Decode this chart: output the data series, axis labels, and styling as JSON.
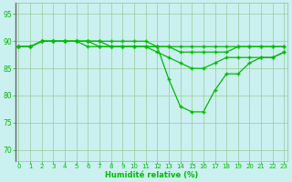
{
  "title": "",
  "xlabel": "Humidité relative (%)",
  "ylabel": "",
  "background_color": "#caf0f0",
  "line_color": "#00bb00",
  "grid_color": "#99cc99",
  "xlim": [
    0,
    23
  ],
  "ylim": [
    68,
    97
  ],
  "yticks": [
    70,
    75,
    80,
    85,
    90,
    95
  ],
  "xticks": [
    0,
    1,
    2,
    3,
    4,
    5,
    6,
    7,
    8,
    9,
    10,
    11,
    12,
    13,
    14,
    15,
    16,
    17,
    18,
    19,
    20,
    21,
    22,
    23
  ],
  "curves": [
    [
      89,
      89,
      90,
      90,
      90,
      90,
      90,
      90,
      90,
      90,
      90,
      90,
      89,
      89,
      89,
      89,
      89,
      89,
      89,
      89,
      89,
      89,
      89,
      89
    ],
    [
      89,
      89,
      90,
      90,
      90,
      90,
      90,
      90,
      89,
      89,
      89,
      89,
      89,
      89,
      88,
      88,
      88,
      88,
      88,
      89,
      89,
      89,
      89,
      89
    ],
    [
      89,
      89,
      90,
      90,
      90,
      90,
      90,
      89,
      89,
      89,
      89,
      89,
      88,
      87,
      86,
      85,
      85,
      86,
      87,
      87,
      87,
      87,
      87,
      88
    ],
    [
      89,
      89,
      90,
      90,
      90,
      90,
      89,
      89,
      89,
      89,
      89,
      89,
      89,
      83,
      78,
      77,
      77,
      81,
      84,
      84,
      86,
      87,
      87,
      88
    ]
  ]
}
